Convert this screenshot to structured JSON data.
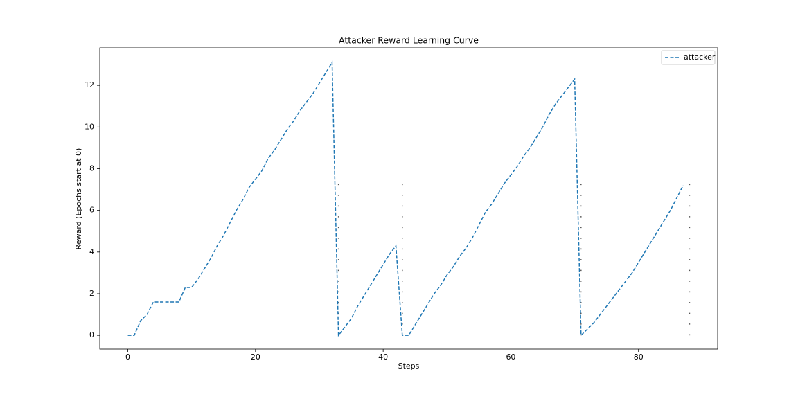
{
  "chart_data": {
    "type": "line",
    "title": "Attacker Reward Learning Curve",
    "x_label": "Steps",
    "y_label": "Reward (Epochs start at 0)",
    "x": [
      0,
      1,
      2,
      3,
      4,
      5,
      6,
      7,
      8,
      9,
      10,
      11,
      12,
      13,
      14,
      15,
      16,
      17,
      18,
      19,
      20,
      21,
      22,
      23,
      24,
      25,
      26,
      27,
      28,
      29,
      30,
      31,
      32,
      33,
      34,
      35,
      36,
      37,
      38,
      39,
      40,
      41,
      42,
      43,
      44,
      45,
      46,
      47,
      48,
      49,
      50,
      51,
      52,
      53,
      54,
      55,
      56,
      57,
      58,
      59,
      60,
      61,
      62,
      63,
      64,
      65,
      66,
      67,
      68,
      69,
      70,
      71,
      72,
      73,
      74,
      75,
      76,
      77,
      78,
      79,
      80,
      81,
      82,
      83,
      84,
      85,
      86,
      87
    ],
    "series": [
      {
        "name": "attacker",
        "color": "#1f77b4",
        "style": "dashed",
        "values": [
          0,
          0,
          0.7,
          1.0,
          1.6,
          1.6,
          1.6,
          1.6,
          1.6,
          2.3,
          2.3,
          2.7,
          3.2,
          3.7,
          4.3,
          4.8,
          5.4,
          6.0,
          6.5,
          7.1,
          7.5,
          7.9,
          8.5,
          8.9,
          9.4,
          9.9,
          10.3,
          10.8,
          11.2,
          11.6,
          12.1,
          12.6,
          13.1,
          0,
          0.4,
          0.8,
          1.4,
          1.9,
          2.4,
          2.9,
          3.4,
          3.9,
          4.3,
          0,
          0,
          0.5,
          1.0,
          1.5,
          2.0,
          2.4,
          2.9,
          3.3,
          3.8,
          4.2,
          4.7,
          5.3,
          5.9,
          6.3,
          6.8,
          7.3,
          7.7,
          8.1,
          8.6,
          9.0,
          9.5,
          10.0,
          10.6,
          11.1,
          11.5,
          11.9,
          12.3,
          0,
          0.3,
          0.6,
          1.0,
          1.4,
          1.8,
          2.2,
          2.6,
          3.0,
          3.5,
          4.0,
          4.5,
          5.0,
          5.5,
          6.0,
          6.6,
          7.2
        ]
      }
    ],
    "vlines": {
      "x": [
        33,
        43,
        71,
        88
      ],
      "ymin": 0,
      "ymax": 7.25,
      "color": "#555555",
      "style": "dotted"
    },
    "xlim": [
      -4.4,
      92.4
    ],
    "ylim": [
      -0.66,
      13.8
    ],
    "xticks": [
      0,
      20,
      40,
      60,
      80
    ],
    "yticks": [
      0,
      2,
      4,
      6,
      8,
      10,
      12
    ],
    "grid": false,
    "legend": "upper right"
  }
}
